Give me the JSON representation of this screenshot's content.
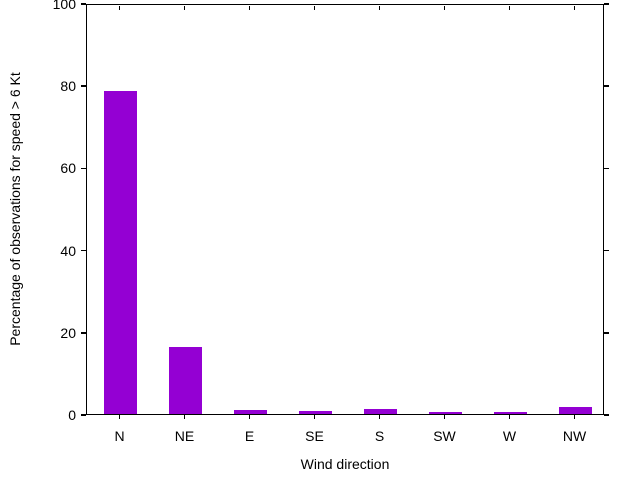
{
  "chart_data": {
    "type": "bar",
    "title": "",
    "xlabel": "Wind direction",
    "ylabel": "Percentage of observations for speed > 6 Kt",
    "categories": [
      "N",
      "NE",
      "E",
      "SE",
      "S",
      "SW",
      "W",
      "NW"
    ],
    "values": [
      78.5,
      16.2,
      1.0,
      0.7,
      1.2,
      0.4,
      0.4,
      1.6
    ],
    "ylim": [
      0,
      100
    ],
    "yticks": [
      0,
      20,
      40,
      60,
      80,
      100
    ],
    "bar_color": "#9400d3",
    "axis_color": "#000000",
    "background_color": "#ffffff",
    "grid": false,
    "legend_position": "none"
  }
}
